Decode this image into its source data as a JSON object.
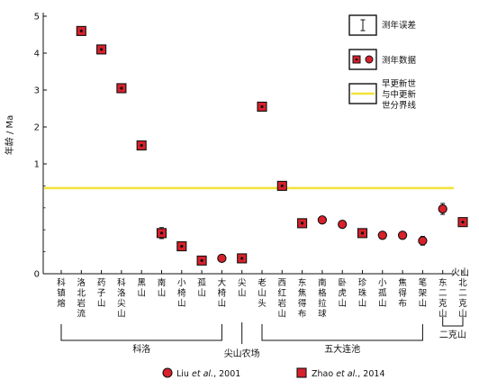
{
  "chart_data": {
    "type": "scatter",
    "ylabel": "年龄 / Ma",
    "xlabel": "火山",
    "y_ticks": [
      "0",
      "1",
      "2",
      "3",
      "4",
      "5"
    ],
    "ylim": [
      0,
      5
    ],
    "y_scale": "nonlinear (expanded below 1 Ma)",
    "boundary": {
      "label": "早更新世与中更新世分界线",
      "value": 0.78,
      "color": "#f2e33a"
    },
    "categories": [
      "科镇熔",
      "洛北岩流",
      "药子山",
      "科洛尖山",
      "黑山",
      "南山",
      "小椅山",
      "孤山",
      "大椅山",
      "尖山",
      "老山头",
      "西红岩山",
      "东焦得布",
      "南格拉球",
      "卧虎山",
      "珍珠山",
      "小孤山",
      "焦得布",
      "笔架山",
      "东二克山",
      "北二克山"
    ],
    "series": [
      {
        "name": "Liu et al., 2001",
        "marker": "circle",
        "color": "#d7212b",
        "points": [
          {
            "x": "大椅山",
            "y": 0.14
          },
          {
            "x": "南格拉球",
            "y": 0.49
          },
          {
            "x": "卧虎山",
            "y": 0.45
          },
          {
            "x": "小孤山",
            "y": 0.35
          },
          {
            "x": "焦得布",
            "y": 0.35
          },
          {
            "x": "笔架山",
            "y": 0.3,
            "err": 0.04
          },
          {
            "x": "东二克山",
            "y": 0.59,
            "err": 0.05
          }
        ]
      },
      {
        "name": "Zhao et al., 2014",
        "marker": "square",
        "color": "#d7212b",
        "points": [
          {
            "x": "洛北岩流",
            "y": 4.6
          },
          {
            "x": "药子山",
            "y": 4.1
          },
          {
            "x": "科洛尖山",
            "y": 3.05
          },
          {
            "x": "黑山",
            "y": 1.5
          },
          {
            "x": "南山",
            "y": 0.37,
            "err": 0.05
          },
          {
            "x": "小椅山",
            "y": 0.25,
            "err": 0.04
          },
          {
            "x": "孤山",
            "y": 0.12
          },
          {
            "x": "尖山",
            "y": 0.14
          },
          {
            "x": "老山头",
            "y": 2.55
          },
          {
            "x": "西红岩山",
            "y": 0.8
          },
          {
            "x": "东焦得布",
            "y": 0.46
          },
          {
            "x": "珍珠山",
            "y": 0.37
          },
          {
            "x": "北二克山",
            "y": 0.47
          }
        ]
      }
    ],
    "groups": [
      {
        "label": "科洛",
        "from": "科镇熔",
        "to": "大椅山"
      },
      {
        "label": "尖山农场",
        "from": "尖山",
        "to": "尖山"
      },
      {
        "label": "五大连池",
        "from": "老山头",
        "to": "笔架山"
      },
      {
        "label": "二克山",
        "from": "东二克山",
        "to": "北二克山"
      }
    ],
    "legend": {
      "placement": "top-right",
      "items": [
        {
          "label": "测年误差",
          "icon": "error-bar-icon"
        },
        {
          "label": "测年数据",
          "icon": "data-marker-icon"
        },
        {
          "label": "早更新世与中更新世分界线",
          "label_lines": [
            "早更新世",
            "与中更新",
            "世分界线"
          ],
          "icon": "boundary-line-icon"
        }
      ]
    },
    "bottom_legend": [
      {
        "label_plain": "Liu ",
        "label_italic": "et al.",
        "label_tail": ", 2001",
        "marker": "circle"
      },
      {
        "label_plain": "Zhao ",
        "label_italic": "et al.",
        "label_tail": ", 2014",
        "marker": "square"
      }
    ]
  }
}
